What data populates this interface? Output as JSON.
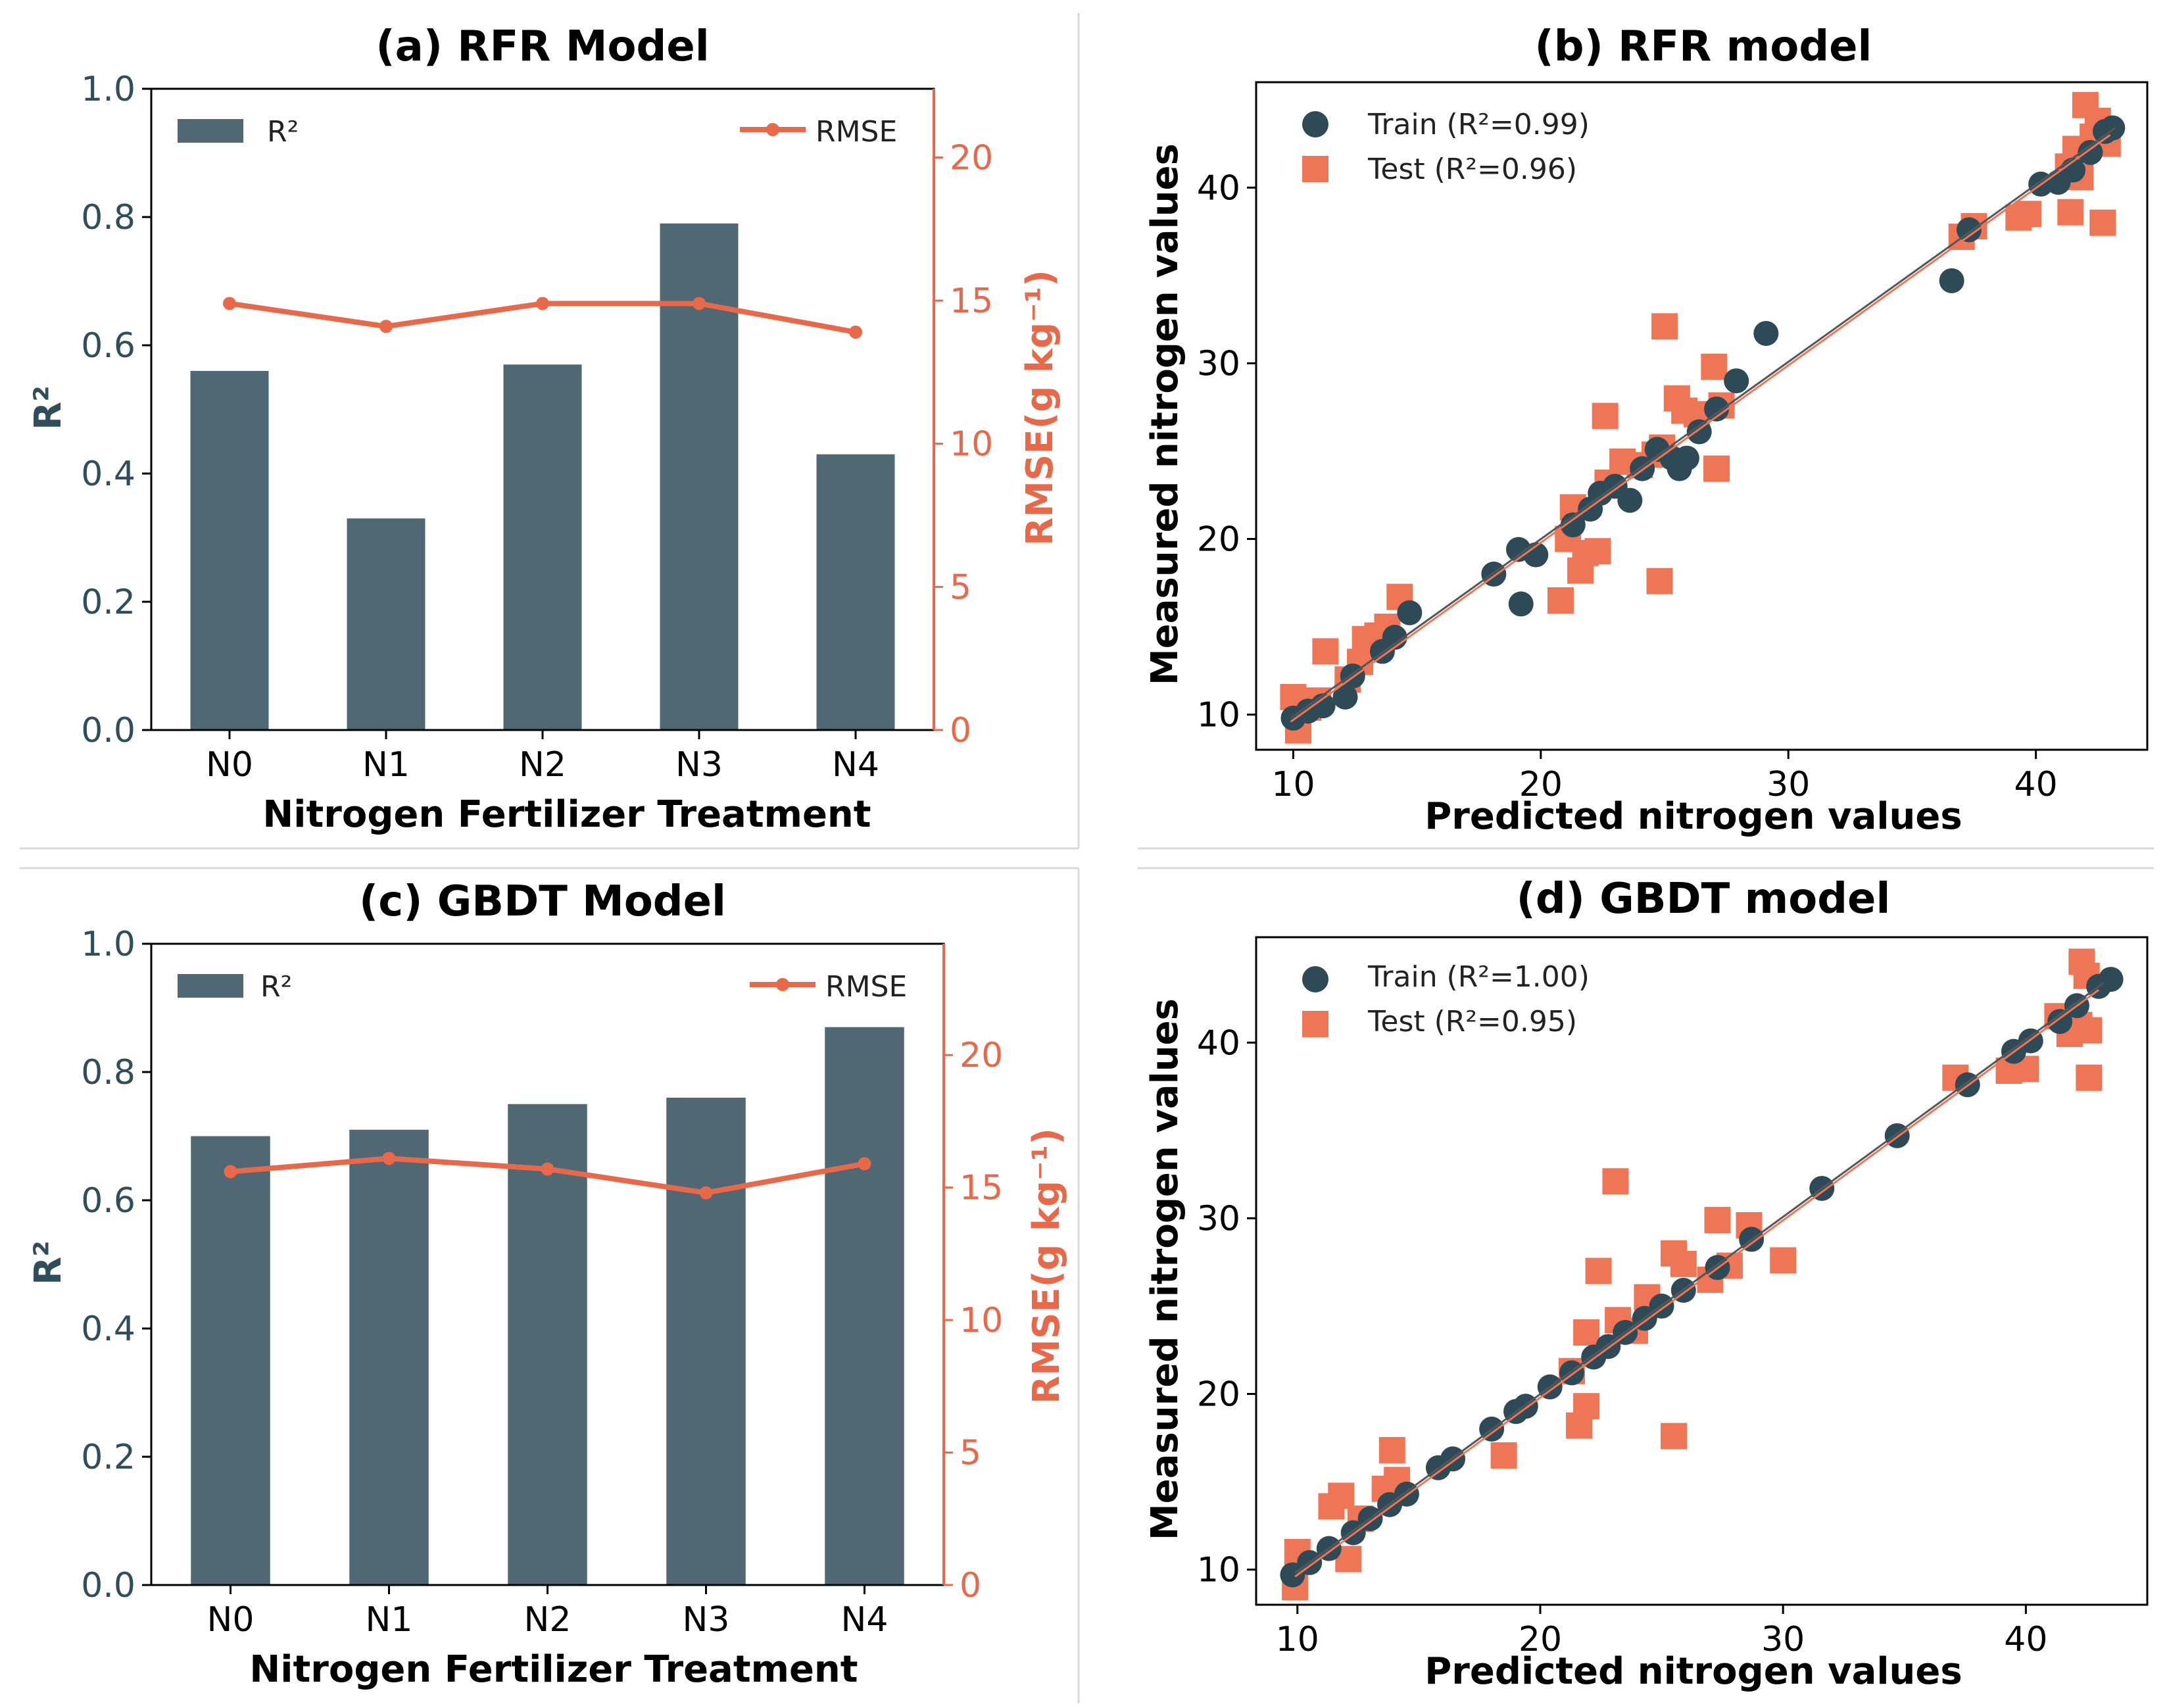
{
  "colors": {
    "bar": "#4f6873",
    "rmse": "#e8694a",
    "train": "#2d4a56",
    "test": "#ee7656",
    "dark_axis": "#2f4d5b",
    "fit_line": "#555555"
  },
  "chart_data": [
    {
      "id": "a",
      "type": "bar",
      "title": "(a) RFR Model",
      "xlabel": "Nitrogen Fertilizer Treatment",
      "ylabel": "R²",
      "y2label": "RMSE(g kg⁻¹)",
      "categories": [
        "N0",
        "N1",
        "N2",
        "N3",
        "N4"
      ],
      "series": [
        {
          "name": "R²",
          "axis": "left",
          "kind": "bar",
          "values": [
            0.56,
            0.33,
            0.57,
            0.79,
            0.43
          ]
        },
        {
          "name": "RMSE",
          "axis": "right",
          "kind": "line",
          "values": [
            14.9,
            14.1,
            14.9,
            14.9,
            13.9
          ]
        }
      ],
      "ylim": [
        0,
        1.0
      ],
      "y2lim": [
        0,
        22.4
      ],
      "yticks": [
        "0.0",
        "0.2",
        "0.4",
        "0.6",
        "0.8",
        "1.0"
      ],
      "y2ticks": [
        "0",
        "5",
        "10",
        "15",
        "20"
      ],
      "legend": [
        "R²",
        "RMSE"
      ]
    },
    {
      "id": "b",
      "type": "scatter",
      "title": "(b) RFR model",
      "xlabel": "Predicted nitrogen values",
      "ylabel": "Measured nitrogen values",
      "xlim": [
        8.5,
        44.5
      ],
      "ylim": [
        8,
        46
      ],
      "xticks": [
        "10",
        "20",
        "30",
        "40"
      ],
      "yticks": [
        "10",
        "20",
        "30",
        "40"
      ],
      "legend": [
        "Train (R²=0.99)",
        "Test (R²=0.96)"
      ],
      "series": [
        {
          "name": "Train (R²=0.99)",
          "points": [
            [
              10,
              9.8
            ],
            [
              10.6,
              10.2
            ],
            [
              11.2,
              10.5
            ],
            [
              12.1,
              11.0
            ],
            [
              12.4,
              12.2
            ],
            [
              13.6,
              13.6
            ],
            [
              14.1,
              14.4
            ],
            [
              14.7,
              15.8
            ],
            [
              18.1,
              18.0
            ],
            [
              19.1,
              19.4
            ],
            [
              19.2,
              16.3
            ],
            [
              19.8,
              19.1
            ],
            [
              21.3,
              20.8
            ],
            [
              22.0,
              21.7
            ],
            [
              22.4,
              22.6
            ],
            [
              23.0,
              23.0
            ],
            [
              23.6,
              22.2
            ],
            [
              24.1,
              24.0
            ],
            [
              24.7,
              25.1
            ],
            [
              25.3,
              24.6
            ],
            [
              25.6,
              24.0
            ],
            [
              25.9,
              24.6
            ],
            [
              26.4,
              26.1
            ],
            [
              27.1,
              27.4
            ],
            [
              27.9,
              29.0
            ],
            [
              29.1,
              31.7
            ],
            [
              36.6,
              34.7
            ],
            [
              37.3,
              37.6
            ],
            [
              40.2,
              40.2
            ],
            [
              40.9,
              40.3
            ],
            [
              41.5,
              41.0
            ],
            [
              42.2,
              42.0
            ],
            [
              42.8,
              43.2
            ],
            [
              43.1,
              43.4
            ]
          ]
        },
        {
          "name": "Test (R²=0.96)",
          "points": [
            [
              10.2,
              9.1
            ],
            [
              10.0,
              11.0
            ],
            [
              10.6,
              10.4
            ],
            [
              11.0,
              10.8
            ],
            [
              11.3,
              13.6
            ],
            [
              12.2,
              12.0
            ],
            [
              12.7,
              13.0
            ],
            [
              12.9,
              14.3
            ],
            [
              13.4,
              14.5
            ],
            [
              13.8,
              15.0
            ],
            [
              14.3,
              16.7
            ],
            [
              20.8,
              16.5
            ],
            [
              21.1,
              20.0
            ],
            [
              21.3,
              21.8
            ],
            [
              21.6,
              18.2
            ],
            [
              21.8,
              19.2
            ],
            [
              22.3,
              19.3
            ],
            [
              22.6,
              27.0
            ],
            [
              22.7,
              23.2
            ],
            [
              23.3,
              24.4
            ],
            [
              24.0,
              24.2
            ],
            [
              24.6,
              24.8
            ],
            [
              24.9,
              25.2
            ],
            [
              24.8,
              17.6
            ],
            [
              25.0,
              32.1
            ],
            [
              25.5,
              28.0
            ],
            [
              25.8,
              27.3
            ],
            [
              26.3,
              27.1
            ],
            [
              27.0,
              29.8
            ],
            [
              27.3,
              27.6
            ],
            [
              27.1,
              24.0
            ],
            [
              37.0,
              37.2
            ],
            [
              37.5,
              37.8
            ],
            [
              39.3,
              38.3
            ],
            [
              39.7,
              38.5
            ],
            [
              41.3,
              41.2
            ],
            [
              41.6,
              42.2
            ],
            [
              41.8,
              40.6
            ],
            [
              42.0,
              44.7
            ],
            [
              42.3,
              42.9
            ],
            [
              42.5,
              43.8
            ],
            [
              42.7,
              38.0
            ],
            [
              42.9,
              42.5
            ],
            [
              41.4,
              38.6
            ]
          ]
        }
      ]
    },
    {
      "id": "c",
      "type": "bar",
      "title": "(c) GBDT Model",
      "xlabel": "Nitrogen Fertilizer Treatment",
      "ylabel": "R²",
      "y2label": "RMSE(g kg⁻¹)",
      "categories": [
        "N0",
        "N1",
        "N2",
        "N3",
        "N4"
      ],
      "series": [
        {
          "name": "R²",
          "axis": "left",
          "kind": "bar",
          "values": [
            0.7,
            0.71,
            0.75,
            0.76,
            0.87
          ]
        },
        {
          "name": "RMSE",
          "axis": "right",
          "kind": "line",
          "values": [
            15.6,
            16.1,
            15.7,
            14.8,
            15.9
          ]
        }
      ],
      "ylim": [
        0,
        1.0
      ],
      "y2lim": [
        0,
        24.2
      ],
      "yticks": [
        "0.0",
        "0.2",
        "0.4",
        "0.6",
        "0.8",
        "1.0"
      ],
      "y2ticks": [
        "0",
        "5",
        "10",
        "15",
        "20"
      ],
      "legend": [
        "R²",
        "RMSE"
      ]
    },
    {
      "id": "d",
      "type": "scatter",
      "title": "(d) GBDT model",
      "xlabel": "Predicted nitrogen values",
      "ylabel": "Measured nitrogen values",
      "xlim": [
        8.3,
        45.0
      ],
      "ylim": [
        8,
        46
      ],
      "xticks": [
        "10",
        "20",
        "30",
        "40"
      ],
      "yticks": [
        "10",
        "20",
        "30",
        "40"
      ],
      "legend": [
        "Train (R²=1.00)",
        "Test (R²=0.95)"
      ],
      "series": [
        {
          "name": "Train (R²=1.00)",
          "points": [
            [
              9.8,
              9.7
            ],
            [
              10.5,
              10.4
            ],
            [
              11.3,
              11.2
            ],
            [
              12.3,
              12.1
            ],
            [
              13.0,
              12.9
            ],
            [
              13.8,
              13.7
            ],
            [
              14.5,
              14.3
            ],
            [
              15.8,
              15.8
            ],
            [
              16.4,
              16.3
            ],
            [
              18.0,
              18.0
            ],
            [
              19.0,
              19.0
            ],
            [
              19.4,
              19.3
            ],
            [
              20.4,
              20.4
            ],
            [
              21.3,
              21.2
            ],
            [
              22.2,
              22.1
            ],
            [
              22.8,
              22.7
            ],
            [
              23.5,
              23.5
            ],
            [
              24.3,
              24.3
            ],
            [
              25.0,
              25.0
            ],
            [
              25.9,
              25.9
            ],
            [
              27.3,
              27.2
            ],
            [
              28.7,
              28.8
            ],
            [
              31.6,
              31.7
            ],
            [
              34.7,
              34.7
            ],
            [
              37.6,
              37.6
            ],
            [
              39.5,
              39.5
            ],
            [
              40.2,
              40.1
            ],
            [
              41.4,
              41.2
            ],
            [
              42.1,
              42.1
            ],
            [
              43.0,
              43.2
            ],
            [
              43.5,
              43.6
            ]
          ]
        },
        {
          "name": "Test (R²=0.95)",
          "points": [
            [
              9.9,
              9.0
            ],
            [
              10.0,
              11.0
            ],
            [
              11.4,
              13.6
            ],
            [
              11.8,
              14.2
            ],
            [
              12.1,
              10.6
            ],
            [
              12.6,
              12.9
            ],
            [
              13.6,
              14.6
            ],
            [
              13.9,
              16.8
            ],
            [
              14.1,
              15.1
            ],
            [
              18.5,
              16.5
            ],
            [
              21.3,
              21.3
            ],
            [
              21.6,
              18.2
            ],
            [
              21.9,
              19.3
            ],
            [
              21.9,
              23.5
            ],
            [
              22.4,
              27.0
            ],
            [
              23.1,
              32.1
            ],
            [
              23.2,
              24.2
            ],
            [
              23.9,
              23.6
            ],
            [
              24.4,
              25.5
            ],
            [
              25.5,
              17.6
            ],
            [
              25.5,
              28.0
            ],
            [
              25.9,
              27.4
            ],
            [
              27.0,
              26.5
            ],
            [
              27.3,
              29.9
            ],
            [
              27.8,
              27.3
            ],
            [
              28.6,
              29.6
            ],
            [
              30.0,
              27.6
            ],
            [
              37.1,
              38.0
            ],
            [
              39.3,
              38.4
            ],
            [
              40.0,
              38.5
            ],
            [
              41.3,
              41.5
            ],
            [
              41.8,
              40.5
            ],
            [
              42.3,
              44.6
            ],
            [
              42.5,
              43.8
            ],
            [
              42.6,
              40.7
            ],
            [
              42.6,
              38.0
            ],
            [
              42.2,
              41.0
            ]
          ]
        }
      ]
    }
  ]
}
